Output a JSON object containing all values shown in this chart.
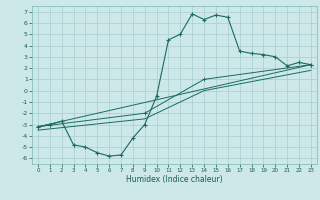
{
  "xlabel": "Humidex (Indice chaleur)",
  "bg_color": "#cce8e8",
  "line_color": "#1a6b60",
  "grid_color": "#aacece",
  "xlim": [
    -0.5,
    23.5
  ],
  "ylim": [
    -6.5,
    7.5
  ],
  "xticks": [
    0,
    1,
    2,
    3,
    4,
    5,
    6,
    7,
    8,
    9,
    10,
    11,
    12,
    13,
    14,
    15,
    16,
    17,
    18,
    19,
    20,
    21,
    22,
    23
  ],
  "yticks": [
    -6,
    -5,
    -4,
    -3,
    -2,
    -1,
    0,
    1,
    2,
    3,
    4,
    5,
    6,
    7
  ],
  "series1_x": [
    0,
    1,
    2,
    3,
    4,
    5,
    6,
    7,
    8,
    9,
    10,
    11,
    12,
    13,
    14,
    15,
    16,
    17,
    18,
    19,
    20,
    21,
    22,
    23
  ],
  "series1_y": [
    -3.2,
    -3.0,
    -2.7,
    -4.8,
    -5.0,
    -5.5,
    -5.8,
    -5.7,
    -4.2,
    -3.0,
    -0.5,
    4.5,
    5.0,
    6.8,
    6.3,
    6.7,
    6.5,
    3.5,
    3.3,
    3.2,
    3.0,
    2.2,
    2.5,
    2.3
  ],
  "line2_x": [
    0,
    23
  ],
  "line2_y": [
    -3.2,
    2.3
  ],
  "line3_x": [
    0,
    9,
    14,
    23
  ],
  "line3_y": [
    -3.5,
    -2.5,
    0.0,
    1.8
  ],
  "line4_x": [
    0,
    9,
    14,
    23
  ],
  "line4_y": [
    -3.2,
    -2.0,
    1.0,
    2.3
  ]
}
